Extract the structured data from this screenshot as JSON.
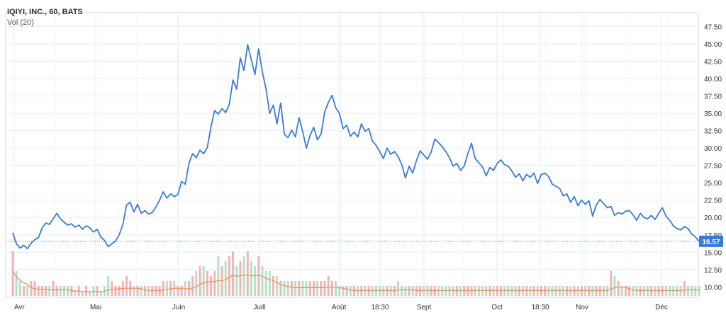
{
  "header": {
    "symbol": "IQIYI, INC., 60, BATS",
    "volume_indicator": "Vol (20)"
  },
  "colors": {
    "price_line": "#3a7bd5",
    "last_price_badge": "#3a7bd5",
    "volume_up": "#f3b4b4",
    "volume_down": "#b7e0c9",
    "volume_ma": "#f08a5d",
    "grid": "#e7eef3",
    "axis_text": "#333333"
  },
  "chart_data": {
    "type": "line",
    "title": "IQIYI, INC., 60, BATS",
    "x_labels": [
      "Avr",
      "Mai",
      "Juin",
      "Juill",
      "Août",
      "18:30",
      "Sept",
      "Oct",
      "18:30",
      "Nov",
      "Déc"
    ],
    "y_ticks": [
      "47.50",
      "45.00",
      "42.50",
      "40.00",
      "37.50",
      "35.00",
      "32.50",
      "30.00",
      "27.50",
      "25.00",
      "22.50",
      "20.00",
      "17.50",
      "15.00",
      "12.50",
      "10.00"
    ],
    "ylim": [
      8.5,
      49.5
    ],
    "last_price": "16.57",
    "series": [
      {
        "values": [
          17.8,
          16.2,
          15.6,
          16.0,
          15.5,
          16.3,
          16.8,
          17.1,
          18.5,
          19.2,
          19.0,
          19.8,
          20.6,
          19.8,
          19.3,
          18.9,
          19.1,
          18.6,
          18.9,
          18.3,
          18.8,
          18.5,
          17.9,
          18.3,
          17.2,
          16.7,
          15.8,
          16.2,
          16.6,
          17.5,
          19.0,
          21.8,
          22.2,
          20.8,
          21.9,
          20.6,
          21.0,
          20.5,
          20.7,
          21.5,
          22.5,
          23.7,
          22.8,
          23.4,
          23.0,
          23.3,
          25.2,
          24.8,
          27.8,
          29.2,
          28.6,
          29.7,
          29.2,
          30.1,
          33.0,
          35.4,
          34.9,
          35.7,
          35.1,
          36.3,
          39.8,
          38.5,
          43.0,
          41.2,
          44.9,
          42.7,
          40.6,
          44.3,
          41.0,
          38.5,
          35.0,
          36.2,
          33.5,
          36.5,
          32.0,
          31.5,
          32.6,
          31.6,
          34.4,
          32.4,
          30.0,
          31.8,
          33.0,
          31.2,
          32.0,
          35.2,
          36.6,
          37.6,
          35.8,
          35.0,
          32.8,
          33.3,
          31.7,
          32.3,
          31.6,
          33.5,
          32.4,
          32.8,
          31.0,
          30.4,
          29.5,
          28.5,
          30.0,
          29.1,
          29.5,
          28.8,
          27.6,
          25.7,
          27.4,
          26.4,
          28.2,
          29.6,
          29.0,
          28.4,
          29.4,
          31.3,
          30.8,
          30.2,
          29.5,
          28.6,
          27.4,
          27.8,
          26.8,
          27.4,
          29.2,
          30.7,
          28.5,
          27.9,
          27.3,
          26.0,
          27.2,
          26.8,
          27.8,
          28.3,
          27.6,
          27.4,
          26.7,
          25.8,
          26.3,
          25.3,
          26.2,
          25.8,
          26.4,
          24.9,
          26.2,
          26.4,
          25.9,
          24.8,
          24.5,
          24.2,
          23.1,
          23.4,
          22.2,
          23.0,
          21.7,
          22.5,
          21.9,
          22.4,
          20.2,
          21.8,
          22.6,
          22.0,
          21.4,
          21.6,
          20.3,
          20.7,
          20.5,
          20.9,
          21.0,
          20.4,
          19.6,
          20.6,
          20.0,
          19.8,
          20.3,
          19.7,
          20.6,
          21.4,
          20.2,
          19.6,
          18.8,
          18.4,
          18.2,
          18.7,
          18.4,
          17.6,
          17.2,
          16.57
        ]
      }
    ],
    "volume": {
      "name": "Vol (20)",
      "bars": [
        9,
        5,
        3,
        2,
        2,
        3,
        3,
        2,
        2,
        2,
        2,
        3,
        2,
        2,
        2,
        2,
        2,
        1,
        2,
        1,
        2,
        1,
        2,
        2,
        1,
        2,
        4,
        3,
        2,
        2,
        3,
        4,
        3,
        2,
        2,
        2,
        2,
        2,
        2,
        2,
        2,
        3,
        3,
        3,
        3,
        2,
        2,
        3,
        3,
        4,
        5,
        6,
        6,
        5,
        4,
        5,
        8,
        6,
        7,
        8,
        9,
        6,
        7,
        8,
        9,
        7,
        6,
        8,
        6,
        5,
        5,
        4,
        4,
        3,
        3,
        3,
        3,
        3,
        3,
        3,
        3,
        3,
        3,
        3,
        3,
        3,
        4,
        3,
        3,
        2,
        2,
        2,
        2,
        2,
        2,
        2,
        2,
        2,
        2,
        2,
        2,
        2,
        2,
        2,
        2,
        3,
        2,
        2,
        2,
        2,
        2,
        2,
        2,
        2,
        2,
        2,
        2,
        2,
        2,
        2,
        2,
        2,
        2,
        2,
        2,
        2,
        2,
        2,
        2,
        2,
        2,
        2,
        2,
        2,
        2,
        2,
        2,
        2,
        2,
        2,
        2,
        2,
        2,
        2,
        2,
        2,
        2,
        2,
        2,
        2,
        2,
        2,
        2,
        2,
        2,
        2,
        2,
        2,
        2,
        2,
        2,
        2,
        2,
        5,
        4,
        3,
        2,
        2,
        2,
        2,
        2,
        2,
        2,
        2,
        2,
        2,
        2,
        2,
        2,
        2,
        2,
        2,
        2,
        3,
        2,
        2,
        2,
        2,
        2,
        2
      ]
    }
  }
}
